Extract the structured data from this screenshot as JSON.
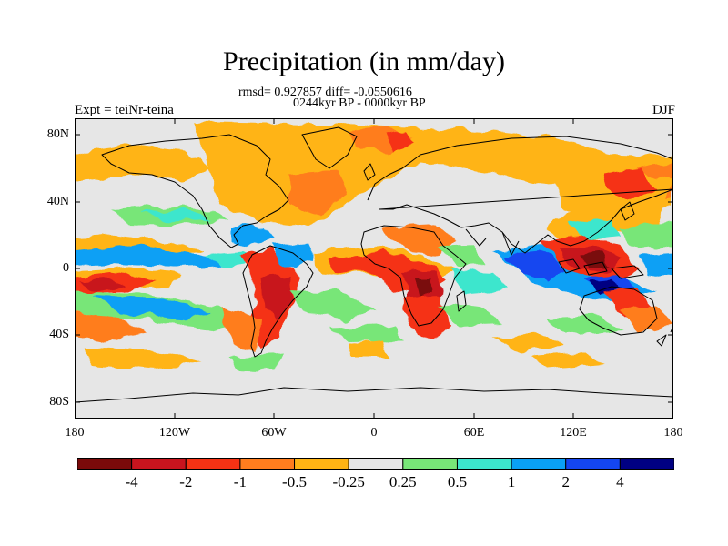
{
  "title": "Precipitation (in mm/day)",
  "stats": "rmsd= 0.927857 diff= -0.0550616",
  "period": "0244kyr BP - 0000kyr BP",
  "experiment": "Expt = teiNr-teina",
  "season": "DJF",
  "map": {
    "region": "global",
    "lon_range": [
      -180,
      180
    ],
    "lat_range": [
      -90,
      90
    ],
    "background_color": "#e6e6e6",
    "coastline_color": "#000000",
    "lat_ticks": [
      "80N",
      "40N",
      "0",
      "40S",
      "80S"
    ],
    "lon_ticks": [
      "180",
      "120W",
      "60W",
      "0",
      "60E",
      "120E",
      "180"
    ]
  },
  "colorbar": {
    "colors": [
      "#7a0a0a",
      "#c8141e",
      "#f53214",
      "#ff7d1e",
      "#ffb414",
      "#e6e6e6",
      "#78e678",
      "#3ce6cd",
      "#0aa0f5",
      "#1446f0",
      "#000082"
    ],
    "labels": [
      "-4",
      "-2",
      "-1",
      "-0.5",
      "-0.25",
      "0.25",
      "0.5",
      "1",
      "2",
      "4"
    ]
  }
}
